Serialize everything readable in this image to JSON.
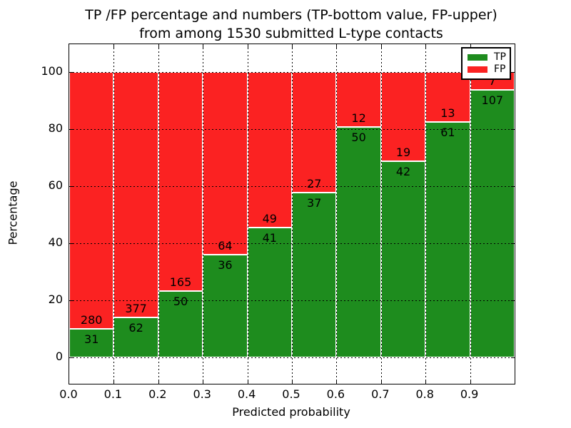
{
  "figure": {
    "title_line1": "TP /FP percentage and numbers (TP-bottom value, FP-upper)",
    "title_line2": "from among 1530 submitted L-type contacts"
  },
  "chart_data": {
    "type": "bar",
    "subtype": "stacked-percentage-histogram",
    "title": "TP /FP percentage and numbers (TP-bottom value, FP-upper)\nfrom among 1530 submitted L-type contacts",
    "xlabel": "Predicted probability",
    "ylabel": "Percentage",
    "total_contacts": 1530,
    "bin_edges": [
      0.0,
      0.1,
      0.2,
      0.3,
      0.4,
      0.5,
      0.6,
      0.7,
      0.8,
      0.9,
      1.0
    ],
    "xtick_labels": [
      "0.0",
      "0.1",
      "0.2",
      "0.3",
      "0.4",
      "0.5",
      "0.6",
      "0.7",
      "0.8",
      "0.9"
    ],
    "ytick_values": [
      0,
      20,
      40,
      60,
      80,
      100
    ],
    "ytick_labels": [
      "0",
      "20",
      "40",
      "60",
      "80",
      "100"
    ],
    "xlim": [
      0.0,
      1.0
    ],
    "ylim": [
      -9.3,
      109.8
    ],
    "grid": true,
    "grid_style": "dotted",
    "bar_edge_color": "#ffffff",
    "series": [
      {
        "name": "TP",
        "color": "#1e8c1e",
        "values": [
          31,
          62,
          50,
          36,
          41,
          37,
          50,
          42,
          61,
          107
        ]
      },
      {
        "name": "FP",
        "color": "#fb2222",
        "values": [
          280,
          377,
          165,
          64,
          49,
          27,
          12,
          19,
          13,
          7
        ]
      }
    ],
    "tp_percent_of_bin": [
      9.97,
      14.12,
      23.26,
      36.0,
      45.56,
      57.81,
      80.65,
      68.85,
      82.43,
      93.86
    ],
    "legend": {
      "position": "upper right",
      "entries": [
        {
          "label": "TP",
          "color": "#1e8c1e"
        },
        {
          "label": "FP",
          "color": "#fb2222"
        }
      ]
    }
  },
  "colors": {
    "tp_green": "#1e8c1e",
    "fp_red": "#fb2222",
    "axis_black": "#000000",
    "background": "#ffffff"
  }
}
